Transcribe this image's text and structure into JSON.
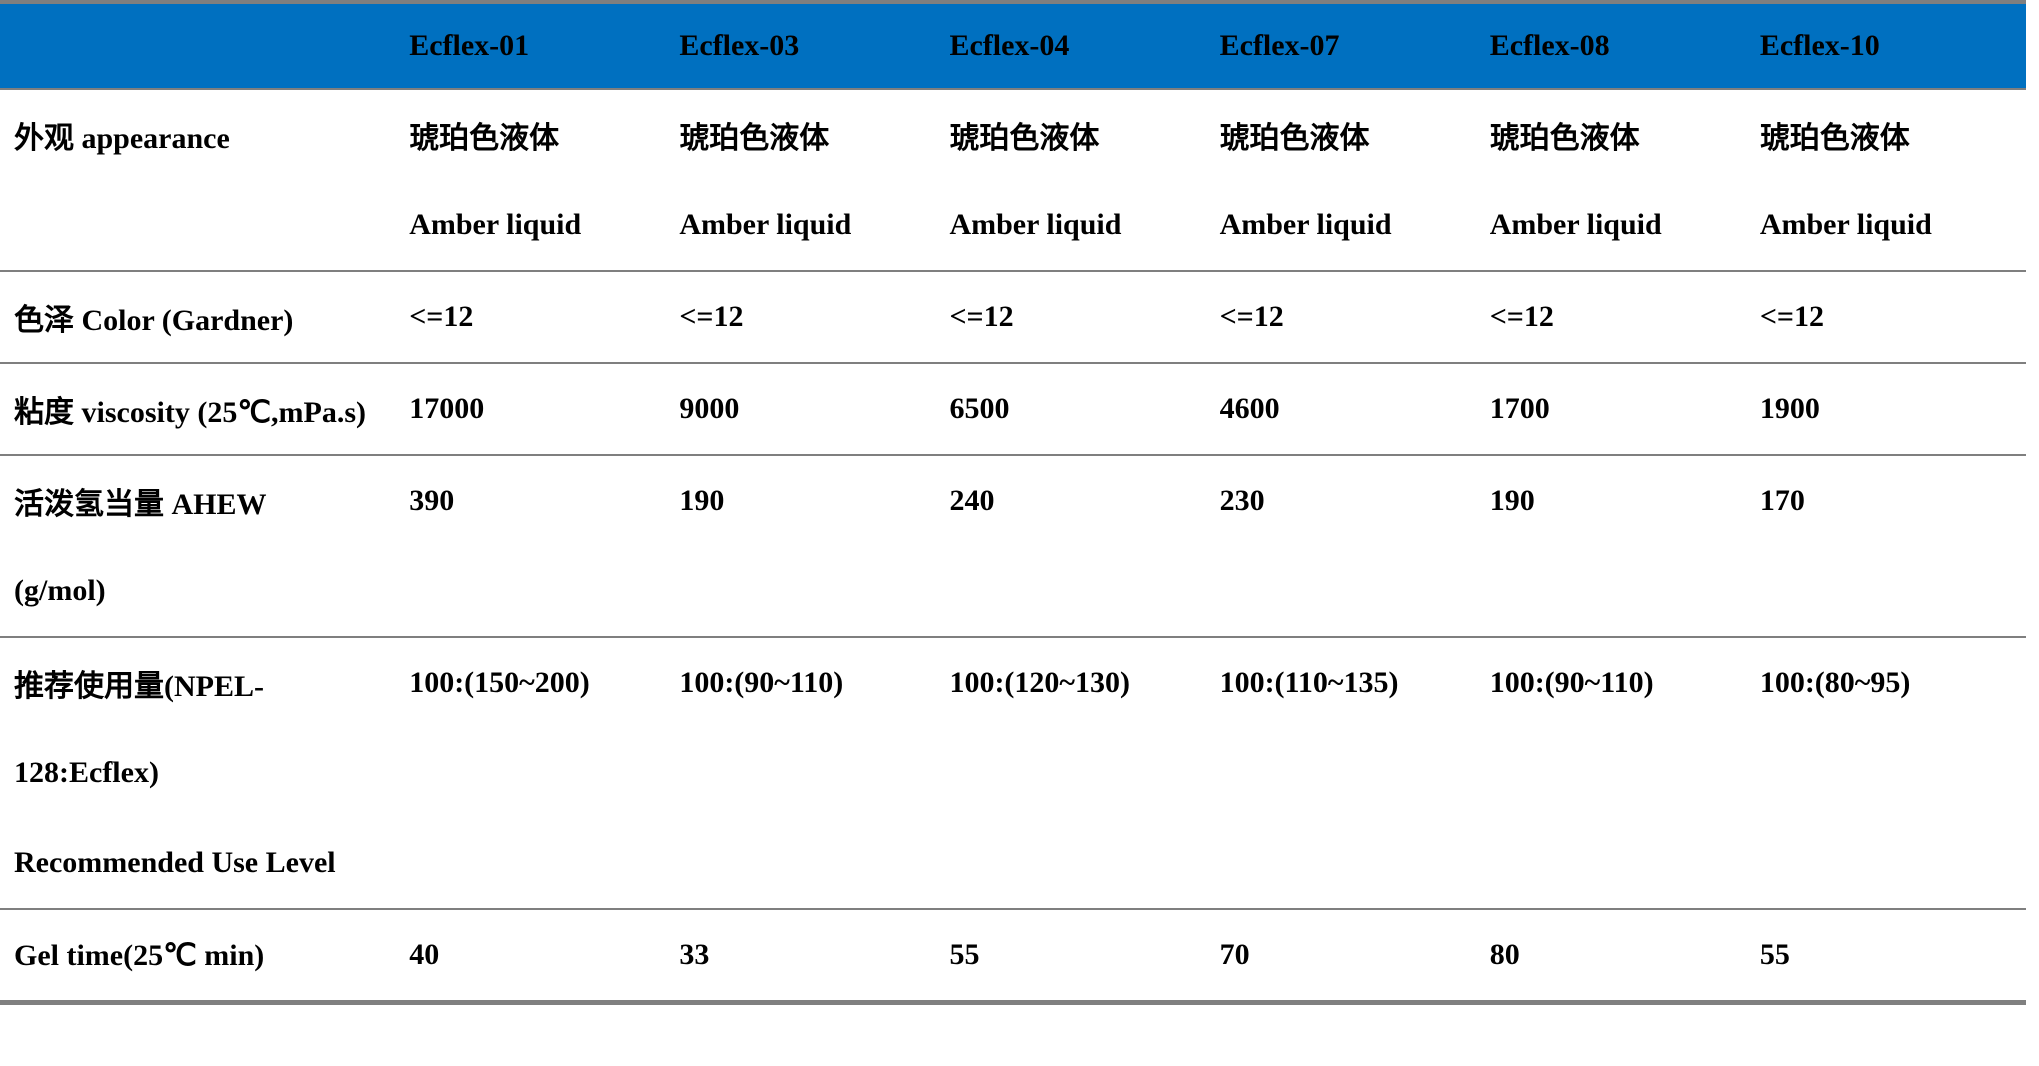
{
  "colors": {
    "header_bg": "#0070C0",
    "header_text": "#000000",
    "divider_gray": "#7f7f7f",
    "body_bg": "#ffffff",
    "text": "#000000"
  },
  "table": {
    "corner_label": "",
    "columns": [
      "Ecflex-01",
      "Ecflex-03",
      "Ecflex-04",
      "Ecflex-07",
      "Ecflex-08",
      "Ecflex-10"
    ],
    "rows": [
      {
        "id": "appearance",
        "label_lines": [
          "外观 appearance"
        ],
        "value_lines": [
          [
            "琥珀色液体",
            "Amber liquid"
          ],
          [
            "琥珀色液体",
            "Amber liquid"
          ],
          [
            "琥珀色液体",
            "Amber liquid"
          ],
          [
            "琥珀色液体",
            "Amber liquid"
          ],
          [
            "琥珀色液体",
            "Amber liquid"
          ],
          [
            "琥珀色液体",
            "Amber liquid"
          ]
        ]
      },
      {
        "id": "color-gardner",
        "label_lines": [
          "色泽 Color (Gardner)"
        ],
        "value_lines": [
          [
            "<=12"
          ],
          [
            "<=12"
          ],
          [
            "<=12"
          ],
          [
            "<=12"
          ],
          [
            "<=12"
          ],
          [
            "<=12"
          ]
        ]
      },
      {
        "id": "viscosity",
        "label_lines": [
          "粘度 viscosity (25℃,mPa.s)"
        ],
        "value_lines": [
          [
            "17000"
          ],
          [
            "9000"
          ],
          [
            "6500"
          ],
          [
            "4600"
          ],
          [
            "1700"
          ],
          [
            "1900"
          ]
        ]
      },
      {
        "id": "ahew",
        "label_lines": [
          "活泼氢当量 AHEW",
          "(g/mol)"
        ],
        "value_lines": [
          [
            "390"
          ],
          [
            "190"
          ],
          [
            "240"
          ],
          [
            "230"
          ],
          [
            "190"
          ],
          [
            "170"
          ]
        ]
      },
      {
        "id": "recommended-use-level",
        "label_lines": [
          "推荐使用量(NPEL-",
          "128:Ecflex)",
          "Recommended Use Level"
        ],
        "value_lines": [
          [
            "100:(150~200)"
          ],
          [
            "100:(90~110)"
          ],
          [
            "100:(120~130)"
          ],
          [
            "100:(110~135)"
          ],
          [
            "100:(90~110)"
          ],
          [
            "100:(80~95)"
          ]
        ]
      },
      {
        "id": "gel-time",
        "label_lines": [
          "Gel time(25℃  min)"
        ],
        "value_lines": [
          [
            "40"
          ],
          [
            "33"
          ],
          [
            "55"
          ],
          [
            "70"
          ],
          [
            "80"
          ],
          [
            "55"
          ]
        ]
      }
    ]
  }
}
